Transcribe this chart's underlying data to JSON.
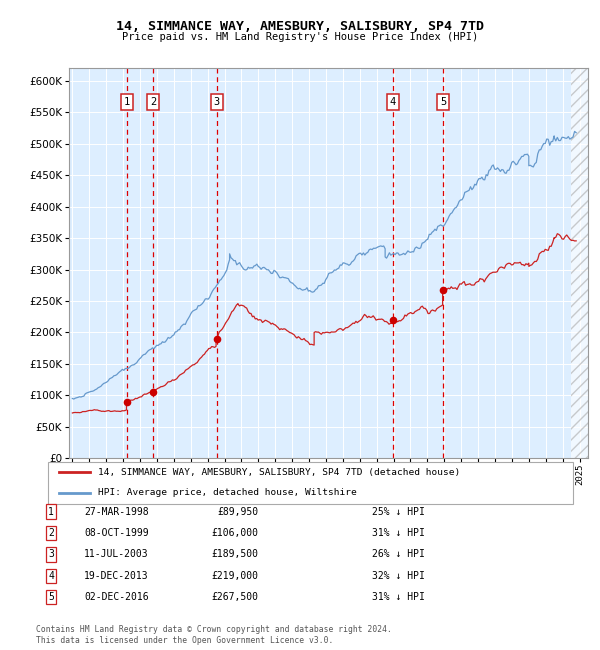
{
  "title": "14, SIMMANCE WAY, AMESBURY, SALISBURY, SP4 7TD",
  "subtitle": "Price paid vs. HM Land Registry's House Price Index (HPI)",
  "xlim": [
    1994.8,
    2025.5
  ],
  "ylim": [
    0,
    620000
  ],
  "yticks": [
    0,
    50000,
    100000,
    150000,
    200000,
    250000,
    300000,
    350000,
    400000,
    450000,
    500000,
    550000,
    600000
  ],
  "ytick_labels": [
    "£0",
    "£50K",
    "£100K",
    "£150K",
    "£200K",
    "£250K",
    "£300K",
    "£350K",
    "£400K",
    "£450K",
    "£500K",
    "£550K",
    "£600K"
  ],
  "bg_color": "#ddeeff",
  "hpi_color": "#6699cc",
  "price_color": "#cc2222",
  "marker_color": "#cc0000",
  "vline_color": "#dd0000",
  "legend_label_price": "14, SIMMANCE WAY, AMESBURY, SALISBURY, SP4 7TD (detached house)",
  "legend_label_hpi": "HPI: Average price, detached house, Wiltshire",
  "transactions": [
    {
      "num": 1,
      "date": "27-MAR-1998",
      "year": 1998.23,
      "price": 89950,
      "label": "1"
    },
    {
      "num": 2,
      "date": "08-OCT-1999",
      "year": 1999.77,
      "price": 106000,
      "label": "2"
    },
    {
      "num": 3,
      "date": "11-JUL-2003",
      "year": 2003.53,
      "price": 189500,
      "label": "3"
    },
    {
      "num": 4,
      "date": "19-DEC-2013",
      "year": 2013.96,
      "price": 219000,
      "label": "4"
    },
    {
      "num": 5,
      "date": "02-DEC-2016",
      "year": 2016.92,
      "price": 267500,
      "label": "5"
    }
  ],
  "table_rows": [
    [
      "1",
      "27-MAR-1998",
      "£89,950",
      "25% ↓ HPI"
    ],
    [
      "2",
      "08-OCT-1999",
      "£106,000",
      "31% ↓ HPI"
    ],
    [
      "3",
      "11-JUL-2003",
      "£189,500",
      "26% ↓ HPI"
    ],
    [
      "4",
      "19-DEC-2013",
      "£219,000",
      "32% ↓ HPI"
    ],
    [
      "5",
      "02-DEC-2016",
      "£267,500",
      "31% ↓ HPI"
    ]
  ],
  "footnote": "Contains HM Land Registry data © Crown copyright and database right 2024.\nThis data is licensed under the Open Government Licence v3.0."
}
